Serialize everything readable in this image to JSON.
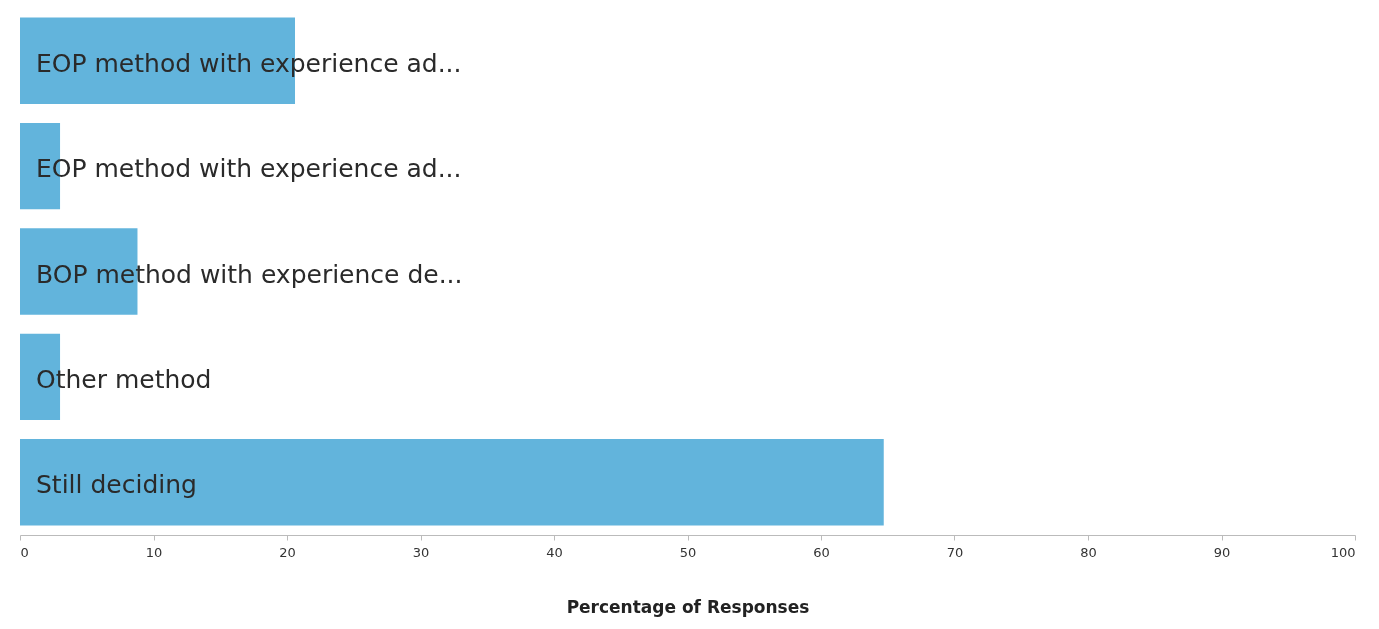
{
  "chart_data": {
    "type": "bar",
    "orientation": "horizontal",
    "xlabel": "Percentage of Responses",
    "categories": [
      "EOP method with experience ad...",
      "EOP method with experience ad...",
      "BOP method with experience de...",
      "Other method",
      "Still deciding"
    ],
    "values": [
      20.6,
      3,
      8.8,
      3,
      64.7
    ],
    "color": "#62b4dc",
    "xlim": [
      0,
      100
    ],
    "xticks": [
      0,
      10,
      20,
      30,
      40,
      50,
      60,
      70,
      80,
      90,
      100
    ]
  }
}
